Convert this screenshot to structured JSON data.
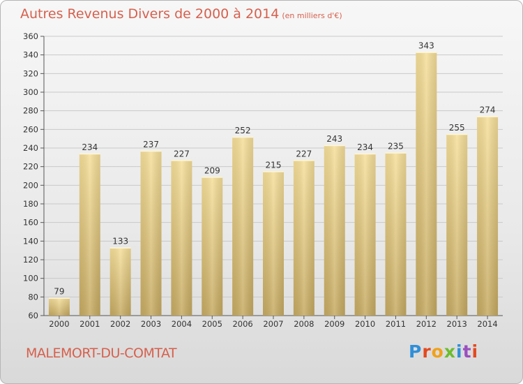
{
  "title": "Autres Revenus Divers de 2000 à 2014",
  "unit": "(en milliers d'€)",
  "place": "MALEMORT-DU-COMTAT",
  "brand": [
    "P",
    "r",
    "o",
    "x",
    "i",
    "t",
    "i"
  ],
  "colors": {
    "title": "#d6604d",
    "bar_light": "#f6df9a",
    "bar_dark": "#c9ae68"
  },
  "chart_data": {
    "type": "bar",
    "title": "Autres Revenus Divers de 2000 à 2014",
    "xlabel": "",
    "ylabel": "",
    "categories": [
      "2000",
      "2001",
      "2002",
      "2003",
      "2004",
      "2005",
      "2006",
      "2007",
      "2008",
      "2009",
      "2010",
      "2011",
      "2012",
      "2013",
      "2014"
    ],
    "values": [
      79,
      234,
      133,
      237,
      227,
      209,
      252,
      215,
      227,
      243,
      234,
      235,
      343,
      255,
      274
    ],
    "ylim": [
      60,
      360
    ],
    "yticks": [
      60,
      80,
      100,
      120,
      140,
      160,
      180,
      200,
      220,
      240,
      260,
      280,
      300,
      320,
      340,
      360
    ],
    "grid": true,
    "legend": "none"
  }
}
